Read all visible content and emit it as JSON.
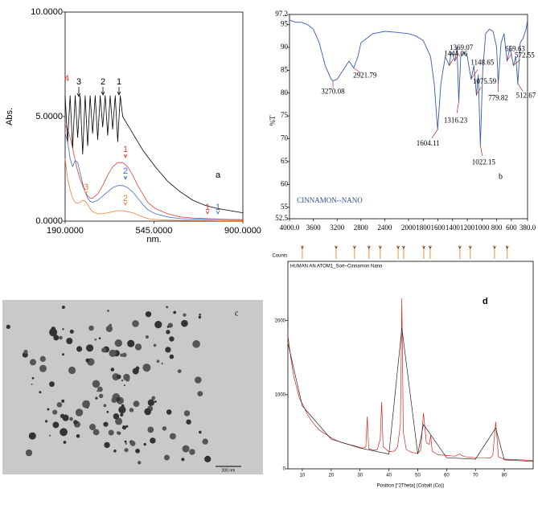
{
  "chart_data": [
    {
      "type": "line",
      "xlabel": "nm.",
      "ylabel": "Abs.",
      "panel_label": "a",
      "xlim": [
        190,
        900
      ],
      "ylim": [
        0,
        10
      ],
      "xticks": [
        {
          "value": 190,
          "label": "190.0000"
        },
        {
          "value": 545,
          "label": "545.0000"
        },
        {
          "value": 900,
          "label": "900.0000"
        }
      ],
      "yticks": [
        {
          "value": 0,
          "label": "0.0000"
        },
        {
          "value": 5,
          "label": "5.0000"
        },
        {
          "value": 10,
          "label": "10.0000"
        }
      ],
      "series": [
        {
          "color": "#e8403a",
          "x": [
            190,
            200,
            210,
            220,
            230,
            240,
            250,
            260,
            270,
            280,
            290,
            300,
            320,
            340,
            360,
            380,
            400,
            420,
            440,
            460,
            480,
            500,
            520,
            550,
            600,
            650,
            700,
            750,
            800,
            850,
            900
          ],
          "values": [
            4.6,
            4.4,
            4.0,
            3.5,
            2.9,
            2.4,
            2.0,
            1.7,
            1.4,
            1.2,
            1.1,
            1.1,
            1.3,
            1.7,
            2.2,
            2.6,
            2.8,
            2.8,
            2.6,
            2.2,
            1.7,
            1.3,
            0.9,
            0.6,
            0.35,
            0.2,
            0.15,
            0.12,
            0.1,
            0.08,
            0.07
          ]
        },
        {
          "color": "#3b6fc4",
          "x": [
            190,
            200,
            210,
            220,
            230,
            240,
            250,
            260,
            270,
            280,
            290,
            300,
            320,
            340,
            360,
            380,
            400,
            420,
            440,
            460,
            480,
            500,
            520,
            550,
            600,
            650,
            700,
            750,
            800,
            850,
            900
          ],
          "values": [
            4.2,
            3.8,
            3.0,
            2.6,
            2.9,
            2.8,
            2.3,
            1.8,
            1.4,
            1.1,
            0.95,
            0.9,
            1.0,
            1.2,
            1.4,
            1.6,
            1.7,
            1.7,
            1.6,
            1.4,
            1.1,
            0.8,
            0.55,
            0.35,
            0.2,
            0.12,
            0.1,
            0.09,
            0.08,
            0.07,
            0.06
          ]
        },
        {
          "color": "#f08030",
          "x": [
            190,
            200,
            210,
            220,
            230,
            240,
            250,
            260,
            270,
            280,
            290,
            300,
            320,
            340,
            360,
            380,
            400,
            420,
            440,
            460,
            480,
            500,
            520,
            550,
            600,
            650,
            700,
            750,
            800,
            850,
            900
          ],
          "values": [
            3.0,
            2.0,
            1.5,
            1.1,
            0.9,
            0.85,
            0.9,
            1.0,
            0.95,
            0.8,
            0.6,
            0.45,
            0.35,
            0.35,
            0.4,
            0.45,
            0.5,
            0.5,
            0.45,
            0.4,
            0.3,
            0.2,
            0.12,
            0.08,
            0.05,
            0.04,
            0.03,
            0.03,
            0.02,
            0.02,
            0.02
          ]
        },
        {
          "color": "#000000",
          "x": [
            190,
            200,
            210,
            220,
            230,
            240,
            250,
            260,
            270,
            280,
            290,
            300,
            310,
            320,
            330,
            340,
            350,
            360,
            370,
            380,
            390,
            400,
            410,
            420,
            440,
            460,
            480,
            500,
            550,
            600,
            650,
            700,
            750,
            800,
            850,
            900
          ],
          "values": [
            6.0,
            3.8,
            6.0,
            3.5,
            6.0,
            4.0,
            6.0,
            3.2,
            6.0,
            3.6,
            6.0,
            4.2,
            6.0,
            3.9,
            6.0,
            4.5,
            6.0,
            4.1,
            6.0,
            4.4,
            6.0,
            3.8,
            6.0,
            5.0,
            4.6,
            4.2,
            3.8,
            3.4,
            2.6,
            1.9,
            1.4,
            1.0,
            0.75,
            0.6,
            0.5,
            0.4
          ]
        }
      ],
      "annotations": [
        {
          "text": "3",
          "color": "#000000"
        },
        {
          "text": "2",
          "color": "#000000"
        },
        {
          "text": "1",
          "color": "#000000"
        },
        {
          "text": "4",
          "color": "#e8403a"
        },
        {
          "text": "1",
          "color": "#e8403a"
        },
        {
          "text": "2",
          "color": "#3b6fc4"
        },
        {
          "text": "3",
          "color": "#f08030"
        },
        {
          "text": "2",
          "color": "#f08030"
        },
        {
          "text": "1",
          "color": "#e8403a"
        },
        {
          "text": "1",
          "color": "#3b6fc4"
        }
      ]
    },
    {
      "type": "line",
      "ylabel": "%T",
      "panel_label": "b",
      "xlim": [
        4000,
        380
      ],
      "xscale_break": 2000,
      "ylim": [
        52.5,
        97.2
      ],
      "xticks": [
        {
          "value": 4000,
          "label": "4000.0"
        },
        3600,
        3200,
        2800,
        2400,
        2000,
        1800,
        1600,
        1400,
        1200,
        1000,
        800,
        600,
        {
          "value": 380,
          "label": "380.0"
        }
      ],
      "yticks": [
        52.5,
        55,
        60,
        65,
        70,
        75,
        80,
        85,
        90,
        95,
        97.2
      ],
      "series": [
        {
          "color": "#3a5da8",
          "x": [
            4000,
            3900,
            3800,
            3700,
            3600,
            3500,
            3400,
            3300,
            3270,
            3200,
            3100,
            3000,
            2921,
            2850,
            2800,
            2600,
            2400,
            2200,
            2000,
            1900,
            1800,
            1700,
            1650,
            1604,
            1560,
            1500,
            1444,
            1420,
            1400,
            1369,
            1340,
            1316,
            1290,
            1250,
            1200,
            1148,
            1110,
            1075,
            1050,
            1022,
            990,
            950,
            900,
            850,
            800,
            779,
            740,
            700,
            659,
            620,
            572,
            540,
            512,
            480,
            440,
            400,
            380
          ],
          "values": [
            96,
            95.5,
            95.5,
            95,
            94,
            91,
            86,
            83,
            82.7,
            83,
            85,
            87,
            85.5,
            88,
            91,
            93,
            93.5,
            93.3,
            93,
            92.5,
            91.5,
            88,
            82,
            72,
            82,
            88,
            86,
            89,
            88.5,
            87,
            90,
            78,
            88,
            89,
            88,
            83,
            86,
            79.5,
            84,
            68.5,
            85,
            93,
            94,
            93.5,
            90,
            82,
            91,
            93,
            87,
            90,
            86,
            88,
            82,
            91,
            92,
            94,
            96
          ]
        }
      ],
      "peak_labels": [
        3270.08,
        2921.79,
        1604.11,
        1444.06,
        1369.07,
        1316.23,
        1148.65,
        1075.59,
        1022.15,
        779.82,
        659.63,
        572.55,
        512.67
      ],
      "annotations": [
        {
          "text": "CINNAMON--NANO",
          "color": "#2b4a9a"
        }
      ]
    },
    {
      "type": "line",
      "xlabel": "Position [°2Theta] (Cobalt (Co))",
      "ylabel": "Counts",
      "subtitle": "HUMAN AN ATOM1_Sort~Cinnamon Nano",
      "panel_label": "d",
      "xlim": [
        5,
        90
      ],
      "ylim": [
        0,
        2800
      ],
      "xticks": [
        10,
        20,
        30,
        40,
        50,
        60,
        70,
        80
      ],
      "yticks": [
        0,
        1000,
        2000
      ],
      "series": [
        {
          "color": "#e0201a",
          "x": [
            5,
            6,
            7,
            8,
            9,
            10,
            11,
            12,
            13,
            14,
            15,
            16,
            18,
            20,
            22,
            24,
            26,
            28,
            30,
            31,
            32,
            32.5,
            33,
            35,
            36,
            37,
            37.5,
            38,
            40,
            42,
            43,
            44,
            44.5,
            45,
            46,
            48,
            50,
            51,
            52,
            53,
            54,
            54.5,
            55,
            57,
            60,
            63,
            64.5,
            66,
            70,
            73,
            75,
            76,
            77,
            78,
            80,
            83,
            86,
            90
          ],
          "values": [
            1800,
            1500,
            1250,
            1100,
            950,
            880,
            800,
            720,
            660,
            610,
            560,
            520,
            470,
            420,
            380,
            350,
            330,
            310,
            290,
            280,
            300,
            700,
            270,
            250,
            260,
            400,
            900,
            300,
            230,
            240,
            300,
            600,
            2300,
            500,
            260,
            220,
            210,
            250,
            750,
            350,
            330,
            450,
            240,
            190,
            180,
            170,
            200,
            165,
            150,
            150,
            145,
            180,
            630,
            160,
            130,
            125,
            120,
            110
          ]
        },
        {
          "color": "#222222",
          "x": [
            5,
            10,
            20,
            30,
            40,
            44.5,
            50,
            52,
            60,
            70,
            77,
            80,
            90
          ],
          "values": [
            1700,
            850,
            400,
            280,
            200,
            1900,
            200,
            600,
            150,
            130,
            550,
            120,
            100
          ]
        }
      ],
      "reference_peaks": [
        10,
        21.7,
        28.1,
        33.1,
        37,
        43.2,
        45.1,
        52.1,
        54.3,
        64.6,
        68.2,
        76.6,
        81
      ]
    }
  ],
  "image_panel": {
    "label": "c",
    "scale_bar": "200 nm"
  }
}
